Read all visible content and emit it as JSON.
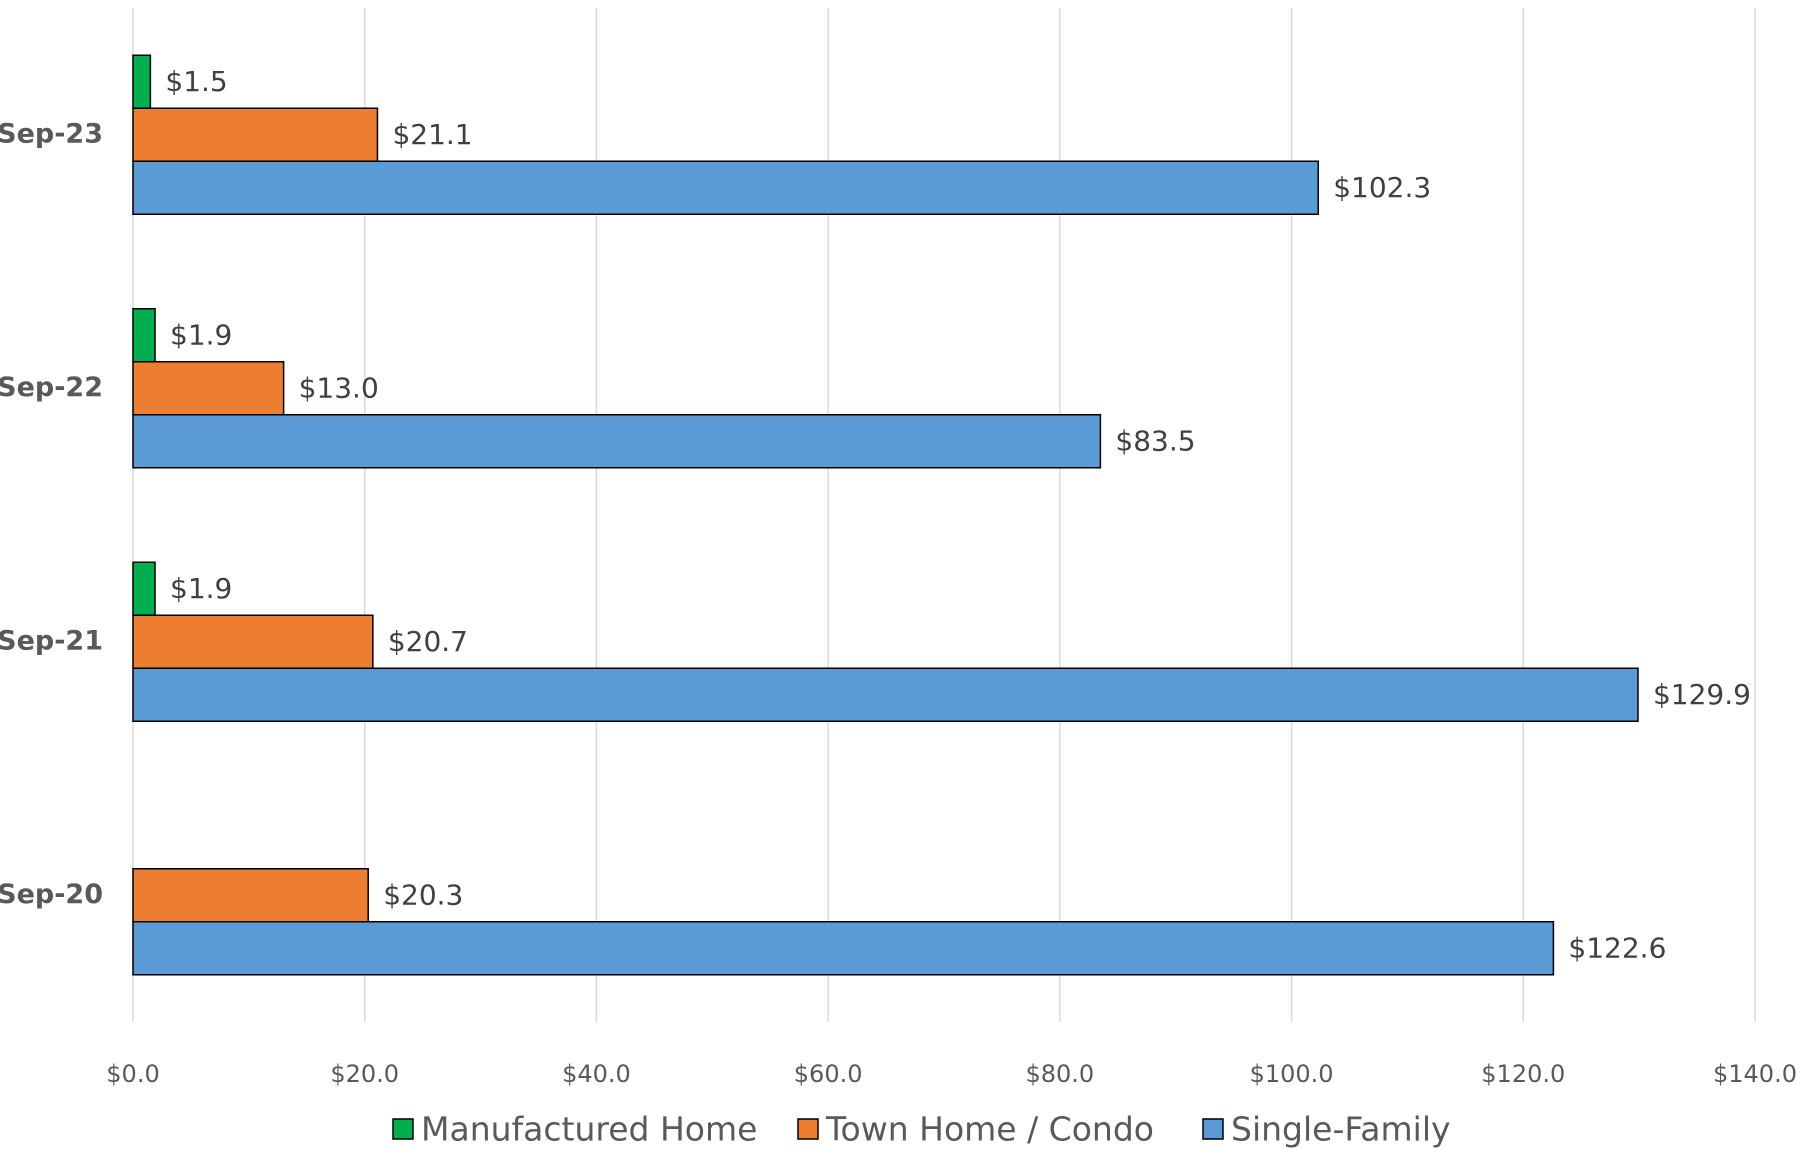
{
  "chart_data": {
    "type": "bar",
    "orientation": "horizontal",
    "title": "",
    "xlabel": "",
    "ylabel": "",
    "categories": [
      "Sep-23",
      "Sep-22",
      "Sep-21",
      "Sep-20"
    ],
    "xlim": [
      0,
      140
    ],
    "xticks": [
      0,
      20,
      40,
      60,
      80,
      100,
      120,
      140
    ],
    "xtick_labels": [
      "$0.0",
      "$20.0",
      "$40.0",
      "$60.0",
      "$80.0",
      "$100.0",
      "$120.0",
      "$140.0"
    ],
    "grid": true,
    "legend_position": "bottom",
    "series": [
      {
        "name": "Manufactured Home",
        "color": "#00b050",
        "values": [
          1.5,
          1.9,
          1.9,
          null
        ],
        "labels": [
          "$1.5",
          "$1.9",
          "$1.9",
          ""
        ]
      },
      {
        "name": "Town Home / Condo",
        "color": "#ed7d31",
        "values": [
          21.1,
          13.0,
          20.7,
          20.3
        ],
        "labels": [
          "$21.1",
          "$13.0",
          "$20.7",
          "$20.3"
        ]
      },
      {
        "name": "Single-Family",
        "color": "#5b9bd5",
        "values": [
          102.3,
          83.5,
          129.9,
          122.6
        ],
        "labels": [
          "$102.3",
          "$83.5",
          "$129.9",
          "$122.6"
        ]
      }
    ]
  }
}
